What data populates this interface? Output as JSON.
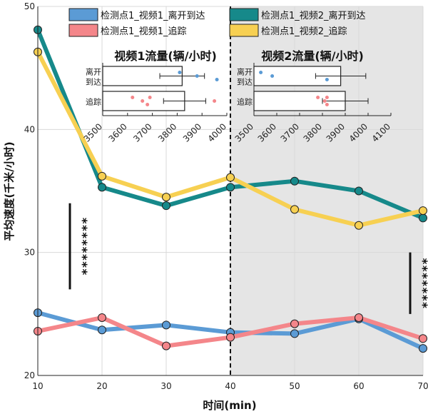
{
  "chart_data": {
    "type": "line",
    "xlabel": "时间(min)",
    "ylabel": "平均速度(千米/小时)",
    "xlim": [
      10,
      70
    ],
    "ylim": [
      20,
      50
    ],
    "xticks": [
      10,
      20,
      30,
      40,
      50,
      60,
      70
    ],
    "yticks": [
      20,
      30,
      40,
      50
    ],
    "grid": true,
    "x": [
      10,
      20,
      30,
      40,
      50,
      60,
      70
    ],
    "series": [
      {
        "name": "检测点1_视频1_离开到达",
        "color": "#5b9bd5",
        "values": [
          25.1,
          23.7,
          24.1,
          23.5,
          23.4,
          24.6,
          22.2
        ]
      },
      {
        "name": "检测点1_视频1_追踪",
        "color": "#f4868a",
        "values": [
          23.6,
          24.7,
          22.4,
          23.1,
          24.2,
          24.7,
          23.0
        ]
      },
      {
        "name": "检测点1_视频2_离开到达",
        "color": "#16898a",
        "values": [
          48.1,
          35.3,
          33.8,
          35.3,
          35.8,
          35.0,
          32.8
        ]
      },
      {
        "name": "检测点1_视频2_追踪",
        "color": "#f7d052",
        "values": [
          46.3,
          36.2,
          34.5,
          36.1,
          33.5,
          32.2,
          33.4
        ]
      }
    ],
    "divider_x": 40,
    "shaded_region": [
      40,
      70
    ],
    "significance": [
      {
        "label": "********",
        "x": 15,
        "y_range": [
          27,
          34
        ]
      },
      {
        "label": "*******",
        "x": 68,
        "y_range": [
          25,
          30
        ]
      }
    ],
    "insets": [
      {
        "title": "视频1流量(辆/小时)",
        "xlim": [
          3500,
          4000
        ],
        "xticks": [
          3500,
          3600,
          3700,
          3800,
          3900,
          4000
        ],
        "categories": [
          "离开到达",
          "追踪"
        ],
        "bars": [
          {
            "category": "离开到达",
            "value": 3820,
            "error": 90,
            "points": [
              3810,
              3880,
              3960
            ],
            "point_color": "#5b9bd5"
          },
          {
            "category": "追踪",
            "value": 3830,
            "error": 85,
            "points": [
              3620,
              3660,
              3680,
              3690,
              3950
            ],
            "point_color": "#f4868a"
          }
        ]
      },
      {
        "title": "视频2流量(辆/小时)",
        "xlim": [
          3500,
          4100
        ],
        "xticks": [
          3500,
          3600,
          3700,
          3800,
          3900,
          4000,
          4100
        ],
        "categories": [
          "离开到达",
          "追踪"
        ],
        "bars": [
          {
            "category": "离开到达",
            "value": 3880,
            "error": 110,
            "points": [
              3530,
              3580,
              3820
            ],
            "point_color": "#5b9bd5"
          },
          {
            "category": "追踪",
            "value": 3900,
            "error": 100,
            "points": [
              3780,
              3810,
              3820,
              3820
            ],
            "point_color": "#f4868a"
          }
        ]
      }
    ]
  }
}
